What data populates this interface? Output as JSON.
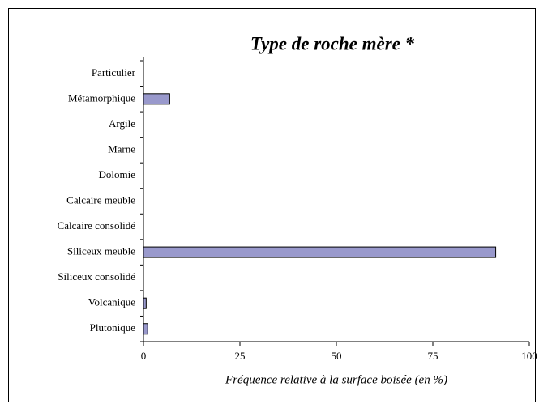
{
  "chart_data": {
    "type": "bar",
    "orientation": "horizontal",
    "title": "Type de roche mère *",
    "x_label": "Fréquence relative à la surface boisée (en %)",
    "categories": [
      "Particulier",
      "Métamorphique",
      "Argile",
      "Marne",
      "Dolomie",
      "Calcaire meuble",
      "Calcaire consolidé",
      "Siliceux meuble",
      "Siliceux consolidé",
      "Volcanique",
      "Plutonique"
    ],
    "values": [
      0,
      6.8,
      0,
      0,
      0,
      0,
      0,
      91.3,
      0,
      0.7,
      1.1
    ],
    "color": "#9999cc",
    "xlim": [
      0,
      100
    ],
    "xticks": [
      0,
      25,
      50,
      75,
      100
    ],
    "grid": false
  }
}
